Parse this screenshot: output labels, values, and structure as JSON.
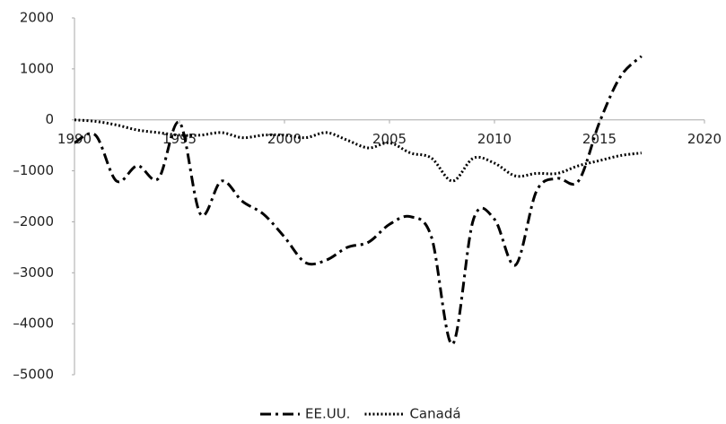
{
  "chart_data": {
    "type": "line",
    "x": [
      1990,
      1991,
      1992,
      1993,
      1994,
      1995,
      1996,
      1997,
      1998,
      1999,
      2000,
      2001,
      2002,
      2003,
      2004,
      2005,
      2006,
      2007,
      2008,
      2009,
      2010,
      2011,
      2012,
      2013,
      2014,
      2015,
      2016,
      2017
    ],
    "series": [
      {
        "name": "EE.UU.",
        "color": "#000000",
        "dash": "dashdot",
        "values": [
          -450,
          -300,
          -1200,
          -900,
          -1150,
          -50,
          -1850,
          -1200,
          -1600,
          -1850,
          -2300,
          -2800,
          -2750,
          -2500,
          -2400,
          -2050,
          -1900,
          -2300,
          -4400,
          -1950,
          -1950,
          -2850,
          -1400,
          -1150,
          -1200,
          -50,
          850,
          1250
        ]
      },
      {
        "name": "Canadá",
        "color": "#000000",
        "dash": "dotted",
        "values": [
          0,
          -30,
          -100,
          -200,
          -250,
          -300,
          -300,
          -250,
          -350,
          -300,
          -300,
          -350,
          -250,
          -400,
          -550,
          -450,
          -650,
          -750,
          -1200,
          -750,
          -850,
          -1100,
          -1050,
          -1050,
          -900,
          -800,
          -700,
          -650
        ]
      }
    ],
    "xlim": [
      1990,
      2020
    ],
    "xticks": [
      1990,
      1995,
      2000,
      2005,
      2010,
      2015,
      2020
    ],
    "ylim": [
      -5000,
      2000
    ],
    "yticks": [
      2000,
      1000,
      0,
      {
        "value": -1000,
        "label": "–1000"
      },
      {
        "value": -2000,
        "label": "–2000"
      },
      {
        "value": -3000,
        "label": "–3000"
      },
      {
        "value": -4000,
        "label": "–4000"
      },
      {
        "value": -5000,
        "label": "–5000"
      }
    ],
    "grid": false,
    "legend": "bottom"
  }
}
